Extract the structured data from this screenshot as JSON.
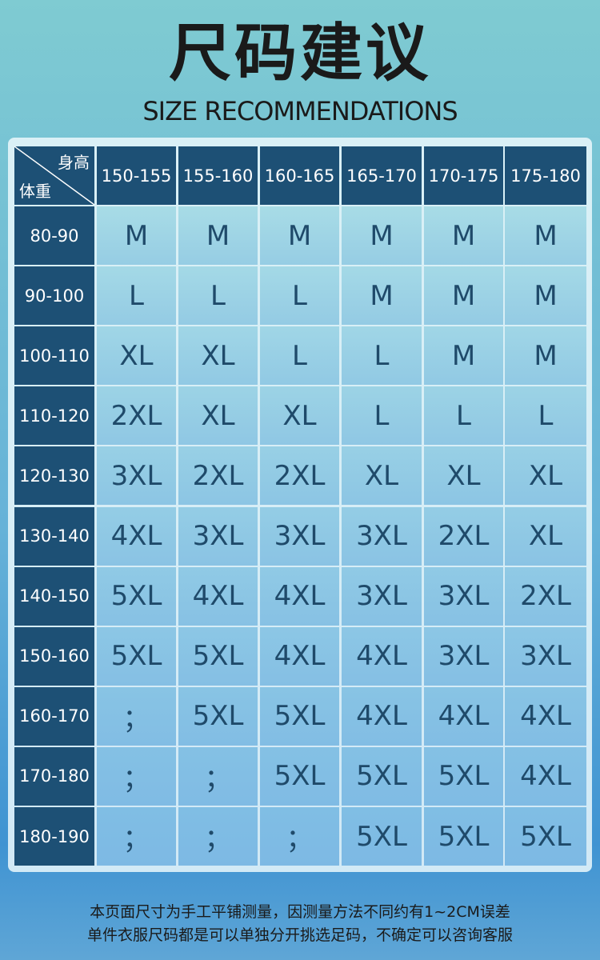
{
  "header": {
    "title": "尺码建议",
    "subtitle": "SIZE RECOMMENDATIONS"
  },
  "table": {
    "corner": {
      "top": "身高",
      "bottom": "体重"
    },
    "columns": [
      "150-155",
      "155-160",
      "160-165",
      "165-170",
      "170-175",
      "175-180"
    ],
    "rows": [
      {
        "label": "80-90",
        "cells": [
          "M",
          "M",
          "M",
          "M",
          "M",
          "M"
        ]
      },
      {
        "label": "90-100",
        "cells": [
          "L",
          "L",
          "L",
          "M",
          "M",
          "M"
        ]
      },
      {
        "label": "100-110",
        "cells": [
          "XL",
          "XL",
          "L",
          "L",
          "M",
          "M"
        ]
      },
      {
        "label": "110-120",
        "cells": [
          "2XL",
          "XL",
          "XL",
          "L",
          "L",
          "L"
        ]
      },
      {
        "label": "120-130",
        "cells": [
          "3XL",
          "2XL",
          "2XL",
          "XL",
          "XL",
          "XL"
        ]
      },
      {
        "label": "130-140",
        "cells": [
          "4XL",
          "3XL",
          "3XL",
          "3XL",
          "2XL",
          "XL"
        ]
      },
      {
        "label": "140-150",
        "cells": [
          "5XL",
          "4XL",
          "4XL",
          "3XL",
          "3XL",
          "2XL"
        ]
      },
      {
        "label": "150-160",
        "cells": [
          "5XL",
          "5XL",
          "4XL",
          "4XL",
          "3XL",
          "3XL"
        ]
      },
      {
        "label": "160-170",
        "cells": [
          "；",
          "5XL",
          "5XL",
          "4XL",
          "4XL",
          "4XL"
        ]
      },
      {
        "label": "170-180",
        "cells": [
          "；",
          "；",
          "5XL",
          "5XL",
          "5XL",
          "4XL"
        ]
      },
      {
        "label": "180-190",
        "cells": [
          "；",
          "；",
          "；",
          "5XL",
          "5XL",
          "5XL"
        ]
      }
    ]
  },
  "footer": [
    "本页面尺寸为手工平铺测量，因测量方法不同约有1~2CM误差",
    "单件衣服尺码都是可以单独分开挑选足码，不确定可以咨询客服"
  ]
}
